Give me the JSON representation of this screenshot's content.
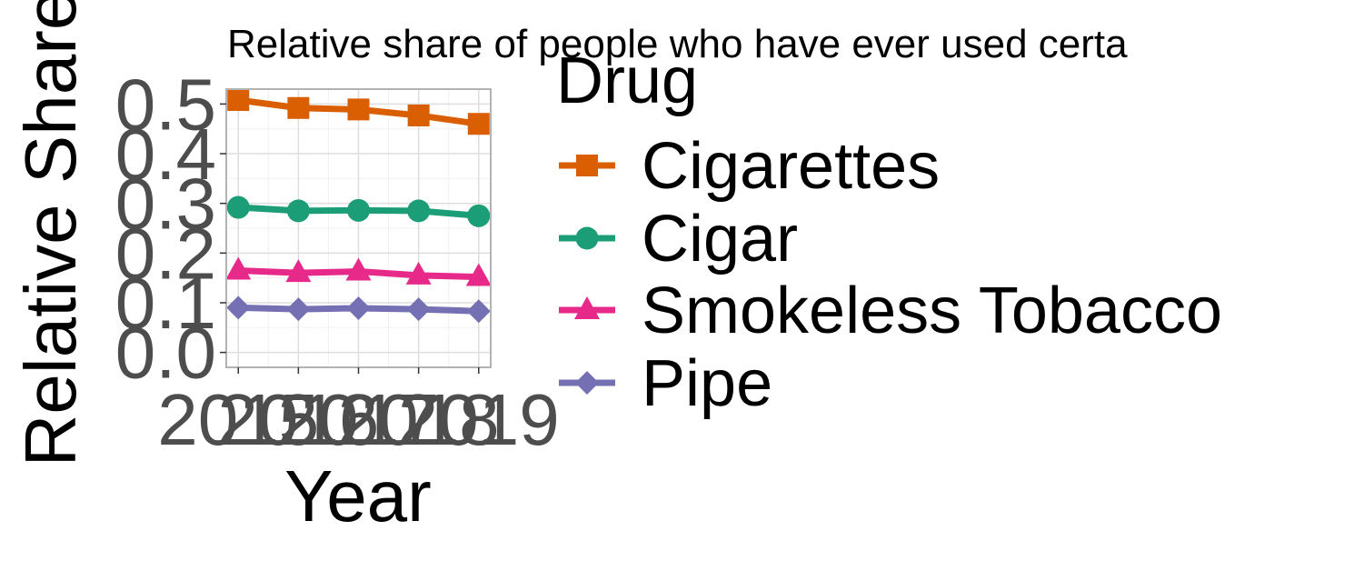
{
  "chart_data": {
    "type": "line",
    "title": "Relative share of people who have ever used certa",
    "xlabel": "Year",
    "ylabel": "Relative Share",
    "x": [
      2015,
      2016,
      2017,
      2018,
      2019
    ],
    "x_tick_labels": [
      "2015",
      "2016",
      "2017",
      "2018",
      "2019"
    ],
    "y_ticks": [
      "0.0",
      "0.1",
      "0.2",
      "0.3",
      "0.4",
      "0.5"
    ],
    "xlim": [
      2014.8,
      2019.2
    ],
    "ylim": [
      -0.03,
      0.53
    ],
    "grid": true,
    "legend": {
      "title": "Drug",
      "position": "right"
    },
    "series": [
      {
        "name": "Cigarettes",
        "color": "#d95f02",
        "marker": "square",
        "values": [
          0.508,
          0.492,
          0.489,
          0.477,
          0.46
        ]
      },
      {
        "name": "Cigar",
        "color": "#1b9e77",
        "marker": "circle",
        "values": [
          0.292,
          0.285,
          0.286,
          0.285,
          0.275
        ]
      },
      {
        "name": "Smokeless Tobacco",
        "color": "#e7298a",
        "marker": "triangle",
        "values": [
          0.165,
          0.16,
          0.163,
          0.155,
          0.152
        ]
      },
      {
        "name": "Pipe",
        "color": "#7570b3",
        "marker": "diamond",
        "values": [
          0.09,
          0.087,
          0.089,
          0.087,
          0.083
        ]
      }
    ]
  }
}
